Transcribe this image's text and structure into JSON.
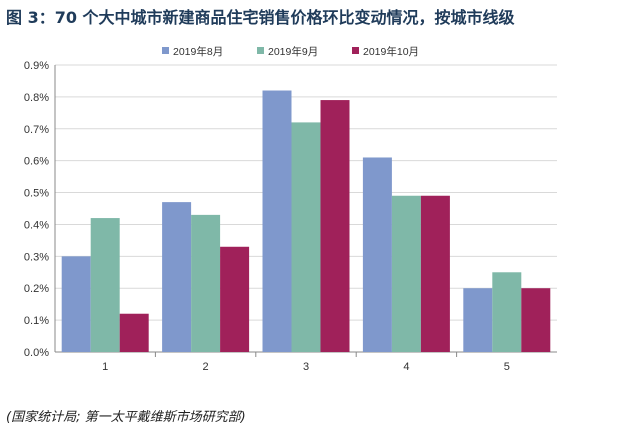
{
  "title": "图 3：70 个大中城市新建商品住宅销售价格环比变动情况，按城市线级",
  "source": "(国家统计局; 第一太平戴维斯市场研究部)",
  "chart_data": {
    "type": "bar",
    "categories": [
      "1",
      "2",
      "3",
      "4",
      "5"
    ],
    "series": [
      {
        "name": "2019年8月",
        "color": "#7f98cc",
        "values": [
          0.3,
          0.47,
          0.82,
          0.61,
          0.2
        ]
      },
      {
        "name": "2019年9月",
        "color": "#7fb8a8",
        "values": [
          0.42,
          0.43,
          0.72,
          0.49,
          0.25
        ]
      },
      {
        "name": "2019年10月",
        "color": "#a0215a",
        "values": [
          0.12,
          0.33,
          0.79,
          0.49,
          0.2
        ]
      }
    ],
    "yticks": [
      "0.0%",
      "0.1%",
      "0.2%",
      "0.3%",
      "0.4%",
      "0.5%",
      "0.6%",
      "0.7%",
      "0.8%",
      "0.9%"
    ],
    "ylim": [
      0,
      0.9
    ],
    "unit": "%",
    "grid": true,
    "legend": "top-center"
  }
}
